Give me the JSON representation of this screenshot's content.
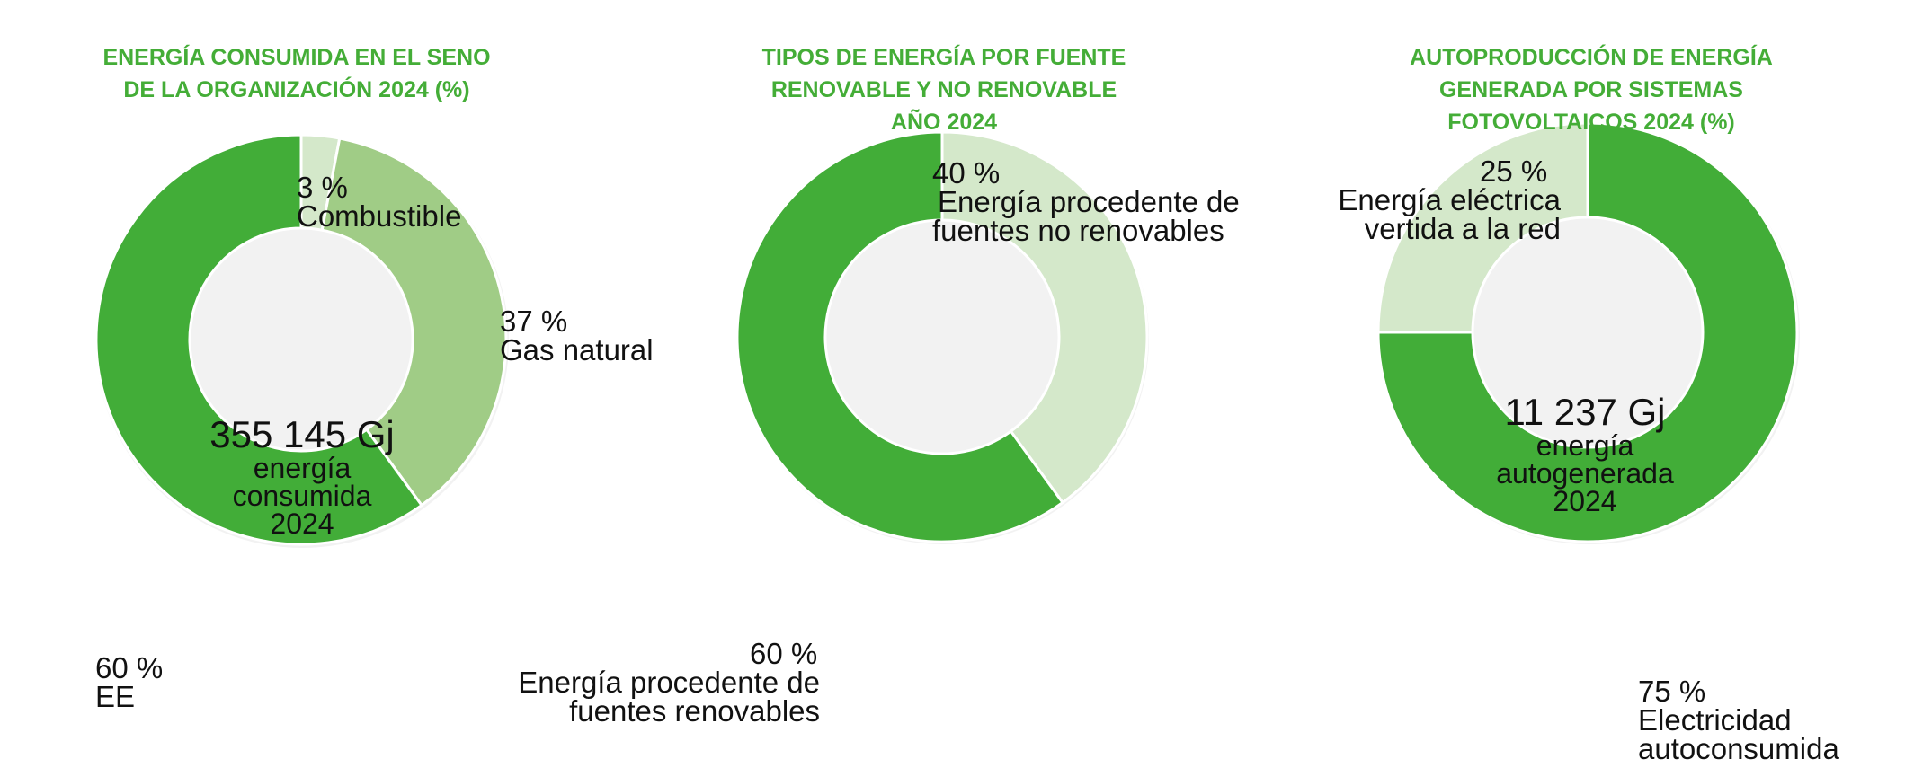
{
  "colors": {
    "title": "#44ad37",
    "dark": "#42ad38",
    "medium": "#a0cc86",
    "light": "#d4e8ca",
    "text": "#111111"
  },
  "chart_data": [
    {
      "type": "pie",
      "title_lines": [
        "ENERGÍA CONSUMIDA EN EL SENO",
        "DE LA ORGANIZACIÓN 2024 (%)"
      ],
      "center": {
        "value": "355 145 Gj",
        "lines": [
          "energía",
          "consumida",
          "2024"
        ]
      },
      "slices": [
        {
          "name": "Combustible",
          "value": 3,
          "pct_label": "3 %",
          "label_lines": [
            "Combustible"
          ],
          "color": "#d4e8ca"
        },
        {
          "name": "Gas natural",
          "value": 37,
          "pct_label": "37 %",
          "label_lines": [
            "Gas natural"
          ],
          "color": "#a0cc86"
        },
        {
          "name": "EE",
          "value": 60,
          "pct_label": "60 %",
          "label_lines": [
            "EE"
          ],
          "color": "#42ad38"
        }
      ]
    },
    {
      "type": "pie",
      "title_lines": [
        "TIPOS DE ENERGÍA POR FUENTE",
        "RENOVABLE Y NO RENOVABLE",
        "AÑO 2024"
      ],
      "center": null,
      "slices": [
        {
          "name": "Energía procedente de fuentes no renovables",
          "value": 40,
          "pct_label": "40 %",
          "label_lines": [
            "Energía procedente de",
            "fuentes no renovables"
          ],
          "color": "#d4e8ca"
        },
        {
          "name": "Energía procedente de fuentes renovables",
          "value": 60,
          "pct_label": "60 %",
          "label_lines": [
            "Energía procedente de",
            "fuentes renovables"
          ],
          "color": "#42ad38"
        }
      ]
    },
    {
      "type": "pie",
      "title_lines": [
        "AUTOPRODUCCIÓN DE ENERGÍA",
        "GENERADA POR SISTEMAS",
        "FOTOVOLTAICOS 2024 (%)"
      ],
      "center": {
        "value": "11 237 Gj",
        "lines": [
          "energía",
          "autogenerada",
          "2024"
        ]
      },
      "slices": [
        {
          "name": "Electricidad autoconsumida",
          "value": 75,
          "pct_label": "75 %",
          "label_lines": [
            "Electricidad",
            "autoconsumida"
          ],
          "color": "#42ad38"
        },
        {
          "name": "Energía eléctrica vertida a la red",
          "value": 25,
          "pct_label": "25 %",
          "label_lines": [
            "Energía eléctrica",
            "vertida a la red"
          ],
          "color": "#d4e8ca"
        }
      ]
    }
  ]
}
